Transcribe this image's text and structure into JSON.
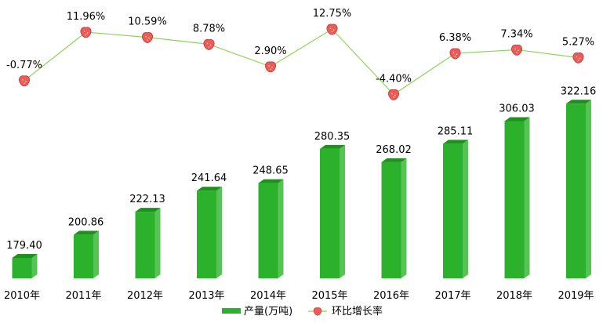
{
  "chart_data": {
    "type": "bar",
    "title": "",
    "xlabel": "",
    "ylabel": "",
    "categories": [
      "2010年",
      "2011年",
      "2012年",
      "2013年",
      "2014年",
      "2015年",
      "2016年",
      "2017年",
      "2018年",
      "2019年"
    ],
    "series": [
      {
        "name": "产量(万吨)",
        "type": "bar",
        "values": [
          179.4,
          200.86,
          222.13,
          241.64,
          248.65,
          280.35,
          268.02,
          285.11,
          306.03,
          322.16
        ],
        "labels": [
          "179.40",
          "200.86",
          "222.13",
          "241.64",
          "248.65",
          "280.35",
          "268.02",
          "285.11",
          "306.03",
          "322.16"
        ],
        "color": "#2cb12c"
      },
      {
        "name": "环比增长率",
        "type": "line",
        "values": [
          -0.77,
          11.96,
          10.59,
          8.78,
          2.9,
          12.75,
          -4.4,
          6.38,
          7.34,
          5.27
        ],
        "labels": [
          "-0.77%",
          "11.96%",
          "10.59%",
          "8.78%",
          "2.90%",
          "12.75%",
          "-4.40%",
          "6.38%",
          "7.34%",
          "5.27%"
        ],
        "color": "#8fd35a",
        "marker": "strawberry-icon"
      }
    ],
    "legend_position": "bottom",
    "grid": false
  },
  "colors": {
    "bar_front": "#2cb12c",
    "bar_side": "#55c455",
    "bar_top": "#1f8f1f",
    "line": "#8fd35a",
    "marker": "#ec5a5a"
  }
}
